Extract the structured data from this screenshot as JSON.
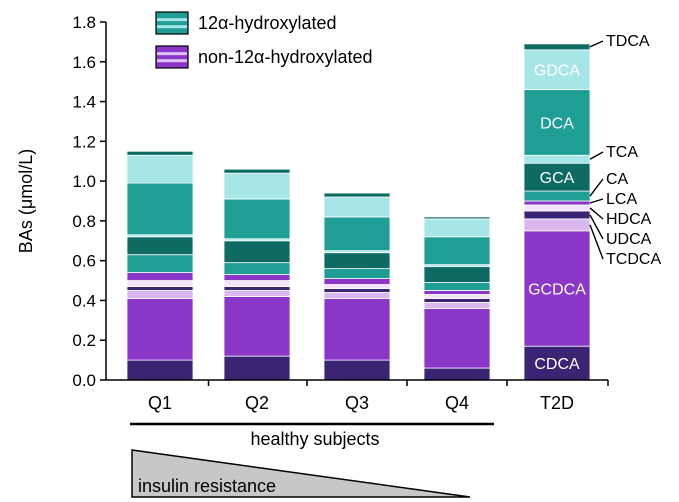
{
  "chart_data": {
    "type": "stacked-bar",
    "ylabel": "BAs (μmol/L)",
    "ylim": [
      0,
      1.8
    ],
    "yticks": [
      "0.0",
      "0.2",
      "0.4",
      "0.6",
      "0.8",
      "1.0",
      "1.2",
      "1.4",
      "1.6",
      "1.8"
    ],
    "categories": [
      "Q1",
      "Q2",
      "Q3",
      "Q4",
      "T2D"
    ],
    "legend": {
      "position": "top-left",
      "entries": [
        {
          "label": "12α-hydroxylated",
          "colors": [
            "#1f9e96",
            "#a6e6e6",
            "#0e6b64"
          ]
        },
        {
          "label": "non-12α-hydroxylated",
          "colors": [
            "#8b35c9",
            "#e0c2f2",
            "#3b1f6e"
          ]
        }
      ]
    },
    "series": [
      {
        "name": "CDCA",
        "group": "non-12α-hydroxylated",
        "color": "#3b2473",
        "values": [
          0.1,
          0.12,
          0.1,
          0.06,
          0.17
        ]
      },
      {
        "name": "GCDCA",
        "group": "non-12α-hydroxylated",
        "color": "#8a37c8",
        "values": [
          0.31,
          0.3,
          0.31,
          0.3,
          0.58
        ]
      },
      {
        "name": "TCDCA",
        "group": "non-12α-hydroxylated",
        "color": "#dab8ef",
        "values": [
          0.04,
          0.03,
          0.03,
          0.03,
          0.06
        ]
      },
      {
        "name": "UDCA",
        "group": "non-12α-hydroxylated",
        "color": "#3b2473",
        "values": [
          0.02,
          0.02,
          0.02,
          0.02,
          0.04
        ]
      },
      {
        "name": "HDCA",
        "group": "non-12α-hydroxylated",
        "color": "#f1e4fa",
        "values": [
          0.03,
          0.03,
          0.02,
          0.02,
          0.03
        ]
      },
      {
        "name": "LCA",
        "group": "non-12α-hydroxylated",
        "color": "#8a37c8",
        "values": [
          0.04,
          0.03,
          0.03,
          0.02,
          0.02
        ]
      },
      {
        "name": "CA",
        "group": "12α-hydroxylated",
        "color": "#1f9e96",
        "values": [
          0.09,
          0.06,
          0.05,
          0.04,
          0.05
        ]
      },
      {
        "name": "GCA",
        "group": "12α-hydroxylated",
        "color": "#0e6b64",
        "values": [
          0.09,
          0.11,
          0.08,
          0.08,
          0.14
        ]
      },
      {
        "name": "TCA",
        "group": "12α-hydroxylated",
        "color": "#a6e6e6",
        "values": [
          0.01,
          0.01,
          0.01,
          0.01,
          0.04
        ]
      },
      {
        "name": "DCA",
        "group": "12α-hydroxylated",
        "color": "#1f9e96",
        "values": [
          0.26,
          0.2,
          0.17,
          0.14,
          0.33
        ]
      },
      {
        "name": "GDCA",
        "group": "12α-hydroxylated",
        "color": "#a6e6e6",
        "values": [
          0.14,
          0.13,
          0.1,
          0.09,
          0.2
        ]
      },
      {
        "name": "TDCA",
        "group": "12α-hydroxylated",
        "color": "#0e6b64",
        "values": [
          0.02,
          0.02,
          0.02,
          0.01,
          0.03
        ]
      }
    ],
    "inside_labels": {
      "category": "T2D",
      "series": [
        "CDCA",
        "GCDCA",
        "GCA",
        "DCA",
        "GDCA"
      ]
    },
    "side_labels": {
      "category": "T2D",
      "series": [
        "TDCA",
        "TCA",
        "CA",
        "LCA",
        "HDCA",
        "UDCA",
        "TCDCA"
      ]
    },
    "group_label": "healthy subjects",
    "group_categories": [
      "Q1",
      "Q2",
      "Q3",
      "Q4"
    ],
    "gradient_label": "insulin resistance"
  }
}
